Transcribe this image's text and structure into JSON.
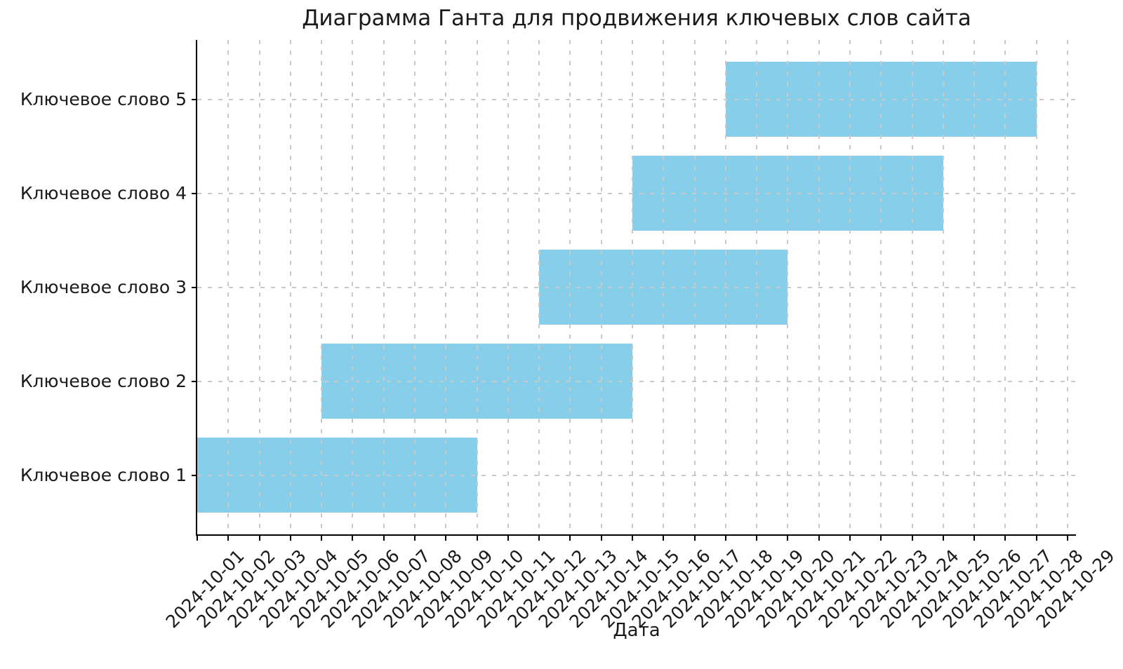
{
  "chart_data": {
    "type": "bar",
    "variant": "gantt-horizontal",
    "title": "Диаграмма Ганта для продвижения ключевых слов сайта",
    "xlabel": "Дата",
    "ylabel": "",
    "categories": [
      "Ключевое слово 1",
      "Ключевое слово 2",
      "Ключевое слово 3",
      "Ключевое слово 4",
      "Ключевое слово 5"
    ],
    "category_order": "bottom-to-top",
    "tasks": [
      {
        "label": "Ключевое слово 1",
        "start": "2024-10-01",
        "end": "2024-10-10",
        "duration_days": 9
      },
      {
        "label": "Ключевое слово 2",
        "start": "2024-10-05",
        "end": "2024-10-15",
        "duration_days": 10
      },
      {
        "label": "Ключевое слово 3",
        "start": "2024-10-12",
        "end": "2024-10-20",
        "duration_days": 8
      },
      {
        "label": "Ключевое слово 4",
        "start": "2024-10-15",
        "end": "2024-10-25",
        "duration_days": 10
      },
      {
        "label": "Ключевое слово 5",
        "start": "2024-10-18",
        "end": "2024-10-28",
        "duration_days": 10
      }
    ],
    "x_tick_labels": [
      "2024-10-01",
      "2024-10-02",
      "2024-10-03",
      "2024-10-04",
      "2024-10-05",
      "2024-10-06",
      "2024-10-07",
      "2024-10-08",
      "2024-10-09",
      "2024-10-10",
      "2024-10-11",
      "2024-10-12",
      "2024-10-13",
      "2024-10-14",
      "2024-10-15",
      "2024-10-16",
      "2024-10-17",
      "2024-10-18",
      "2024-10-19",
      "2024-10-20",
      "2024-10-21",
      "2024-10-22",
      "2024-10-23",
      "2024-10-24",
      "2024-10-25",
      "2024-10-26",
      "2024-10-27",
      "2024-10-28",
      "2024-10-29"
    ],
    "x_tick_rotation_deg": 45,
    "xlim": [
      "2024-10-01",
      "2024-10-29"
    ],
    "bar_color": "#87CEEB",
    "grid": true,
    "grid_style": "dashed",
    "grid_color": "#c9c9c9",
    "spines": [
      "left",
      "bottom"
    ],
    "legend": false
  }
}
